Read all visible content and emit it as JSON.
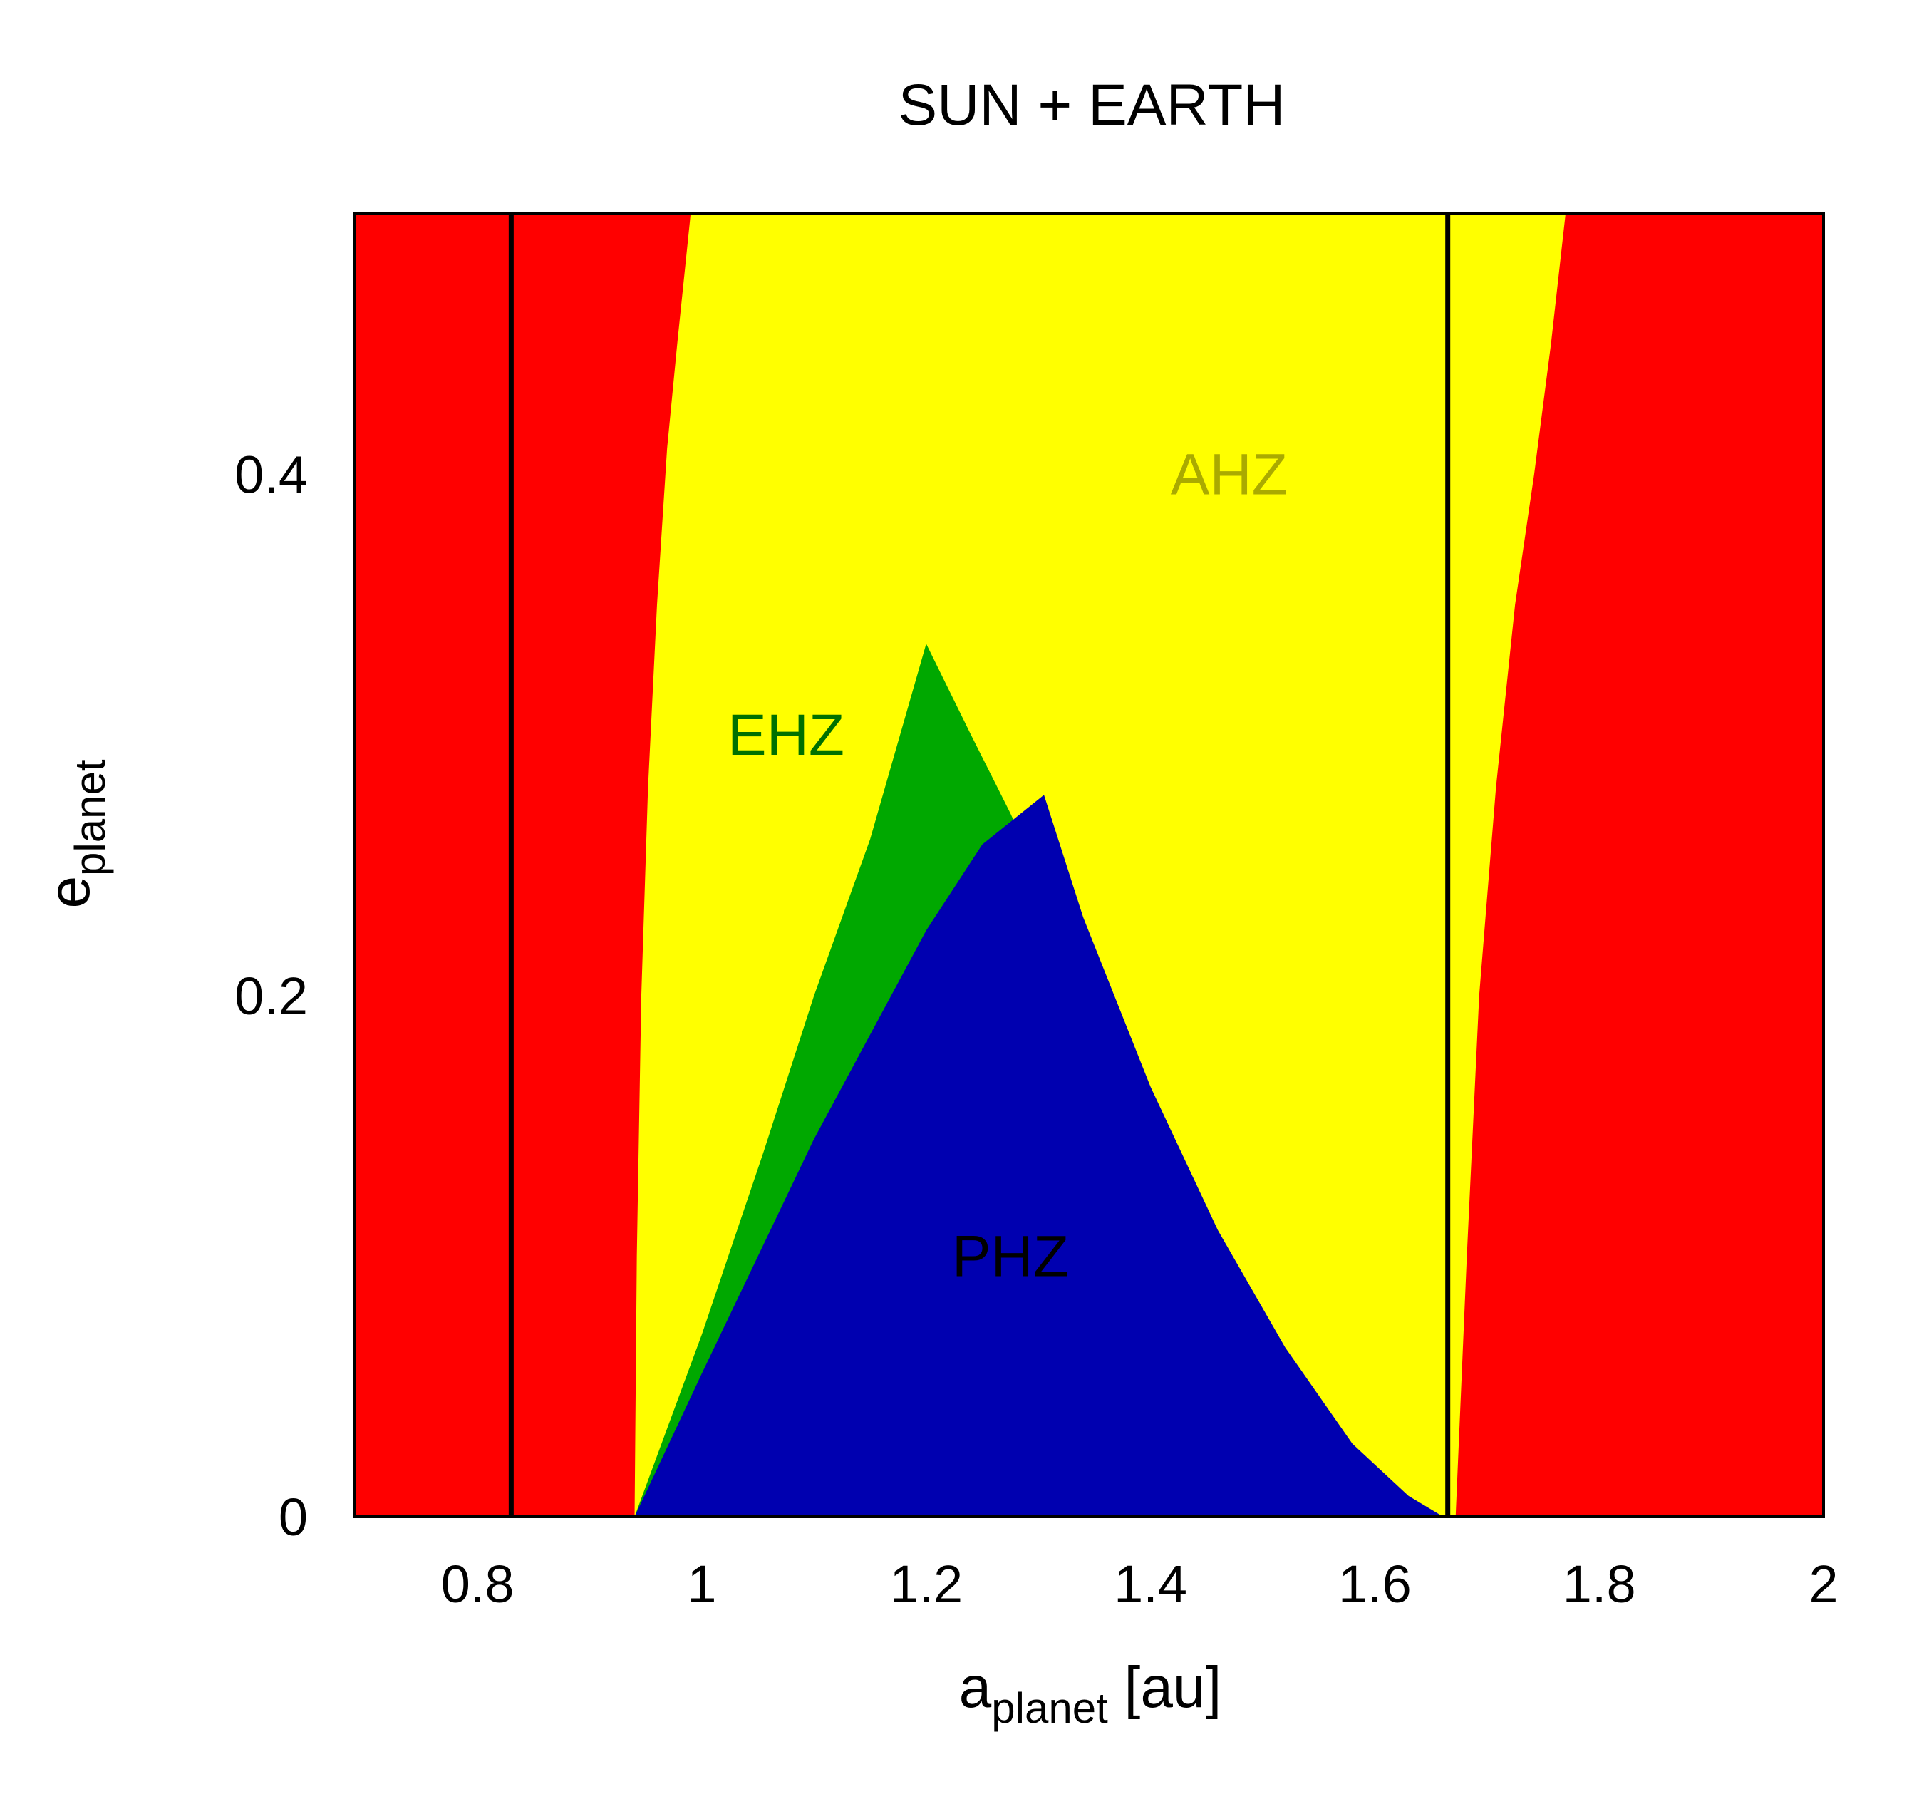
{
  "chart_data": {
    "type": "area",
    "title": "SUN + EARTH",
    "xlabel": {
      "main": "a",
      "sub": "planet",
      "suffix": " [au]"
    },
    "ylabel": {
      "main": "e",
      "sub": "planet"
    },
    "xlim": [
      0.69,
      2.0
    ],
    "ylim": [
      0,
      0.5
    ],
    "xticks": [
      0.8,
      1,
      1.2,
      1.4,
      1.6,
      1.8,
      2
    ],
    "xtick_labels": [
      "0.8",
      "1",
      "1.2",
      "1.4",
      "1.6",
      "1.8",
      "2"
    ],
    "yticks": [
      0,
      0.2,
      0.4
    ],
    "ytick_labels": [
      "0",
      "0.2",
      "0.4"
    ],
    "grid": false,
    "background_color": "#ff0000",
    "vertical_lines": [
      0.83,
      1.665
    ],
    "regions": [
      {
        "label": "AHZ",
        "color": "#ffff00",
        "label_color": "#aaaa00",
        "label_at": [
          1.47,
          0.4
        ],
        "polygon": [
          [
            0.94,
            0
          ],
          [
            0.942,
            0.1
          ],
          [
            0.946,
            0.2
          ],
          [
            0.952,
            0.28
          ],
          [
            0.96,
            0.35
          ],
          [
            0.969,
            0.41
          ],
          [
            0.978,
            0.45
          ],
          [
            0.99,
            0.5
          ],
          [
            1.77,
            0.5
          ],
          [
            1.757,
            0.45
          ],
          [
            1.742,
            0.4
          ],
          [
            1.725,
            0.35
          ],
          [
            1.708,
            0.28
          ],
          [
            1.693,
            0.2
          ],
          [
            1.682,
            0.1
          ],
          [
            1.672,
            0
          ]
        ]
      },
      {
        "label": "EHZ",
        "color": "#00a800",
        "label_color": "#007000",
        "label_at": [
          1.075,
          0.3
        ],
        "polygon": [
          [
            0.94,
            0
          ],
          [
            1.0,
            0.07
          ],
          [
            1.055,
            0.14
          ],
          [
            1.1,
            0.2
          ],
          [
            1.15,
            0.26
          ],
          [
            1.2,
            0.335
          ],
          [
            1.24,
            0.3
          ],
          [
            1.275,
            0.27
          ],
          [
            1.31,
            0.237
          ],
          [
            1.36,
            0.185
          ],
          [
            1.42,
            0.12
          ],
          [
            1.48,
            0.07
          ],
          [
            1.54,
            0.035
          ],
          [
            1.6,
            0.01
          ],
          [
            1.661,
            0
          ]
        ]
      },
      {
        "label": "PHZ",
        "color": "#0000b0",
        "label_color": "#000000",
        "label_at": [
          1.275,
          0.1
        ],
        "polygon": [
          [
            0.94,
            0
          ],
          [
            1.0,
            0.055
          ],
          [
            1.05,
            0.1
          ],
          [
            1.1,
            0.145
          ],
          [
            1.15,
            0.185
          ],
          [
            1.2,
            0.225
          ],
          [
            1.25,
            0.258
          ],
          [
            1.305,
            0.277
          ],
          [
            1.34,
            0.23
          ],
          [
            1.4,
            0.165
          ],
          [
            1.46,
            0.11
          ],
          [
            1.52,
            0.065
          ],
          [
            1.58,
            0.028
          ],
          [
            1.63,
            0.008
          ],
          [
            1.661,
            0
          ]
        ]
      }
    ]
  }
}
